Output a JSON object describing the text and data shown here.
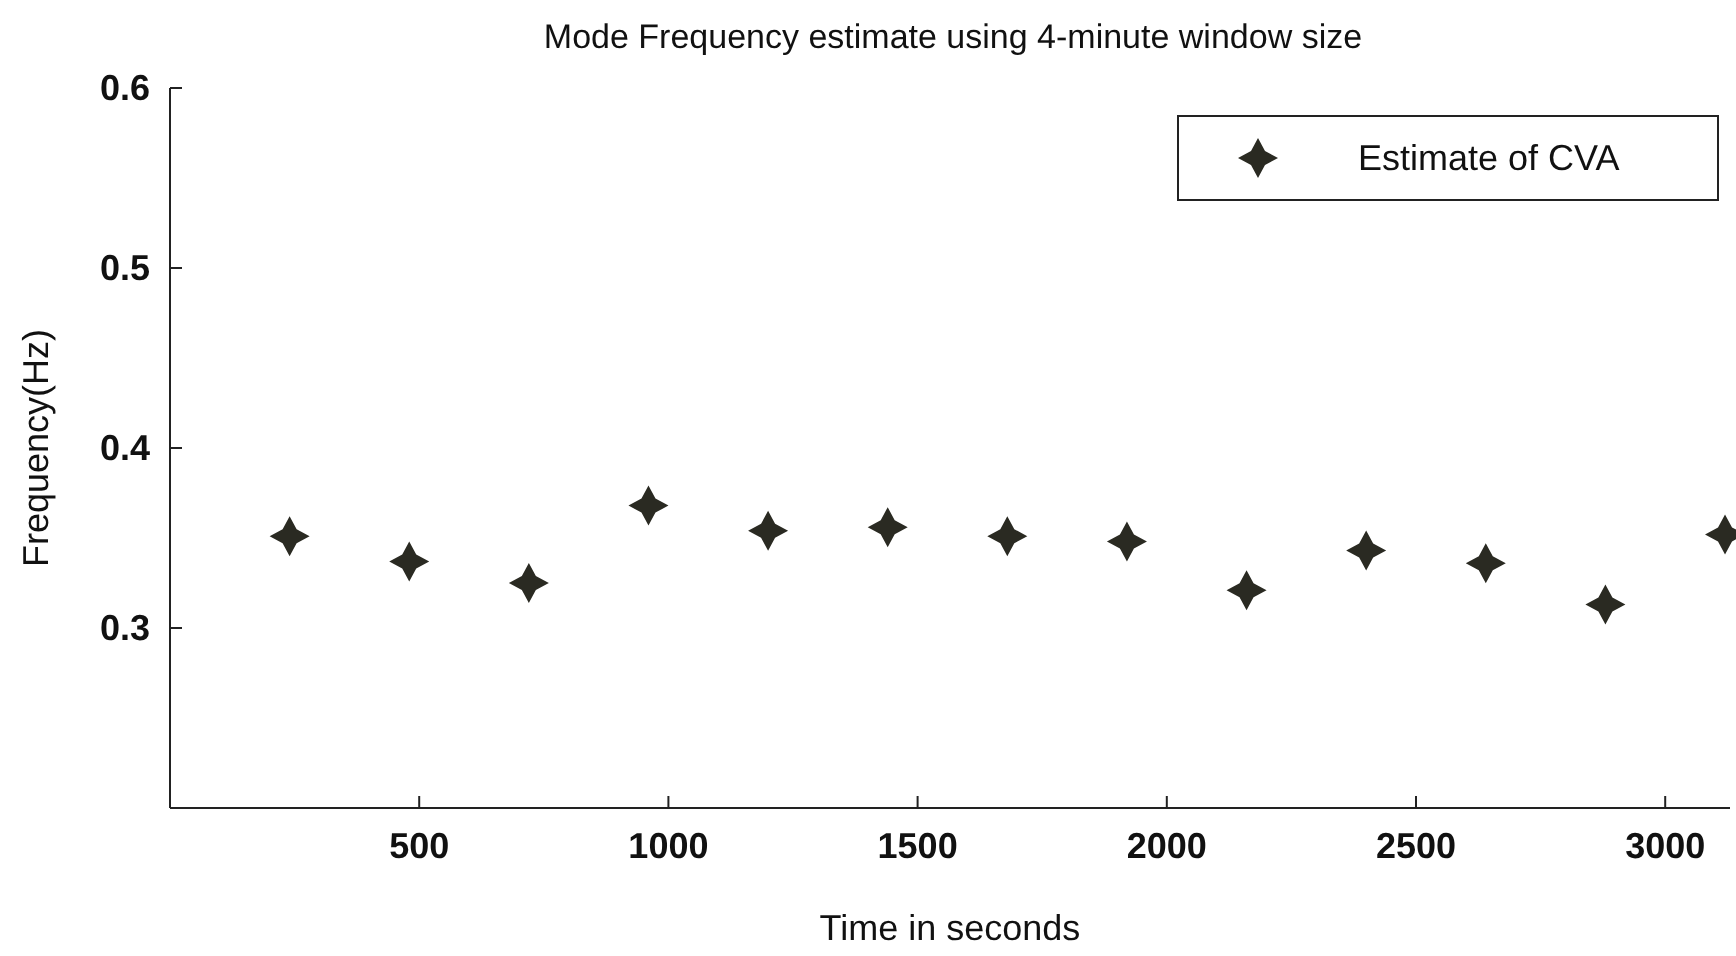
{
  "chart_data": {
    "type": "scatter",
    "title": "Mode Frequency estimate using 4-minute window size",
    "xlabel": "Time in seconds",
    "ylabel": "Frequency(Hz)",
    "x": [
      240,
      480,
      720,
      960,
      1200,
      1440,
      1680,
      1920,
      2160,
      2400,
      2640,
      2880,
      3120
    ],
    "series": [
      {
        "name": "Estimate of CVA",
        "color": "#2a2a22",
        "values": [
          0.351,
          0.337,
          0.325,
          0.368,
          0.354,
          0.356,
          0.351,
          0.348,
          0.321,
          0.343,
          0.336,
          0.313,
          0.352
        ]
      }
    ],
    "xlim": [
      0,
      3130
    ],
    "xticks": [
      500,
      1000,
      1500,
      2000,
      2500,
      3000
    ],
    "ylim": [
      0.2,
      0.6
    ],
    "yticks": [
      0.3,
      0.4,
      0.5,
      0.6
    ],
    "marker": "star",
    "legend": "top right",
    "grid": false
  }
}
